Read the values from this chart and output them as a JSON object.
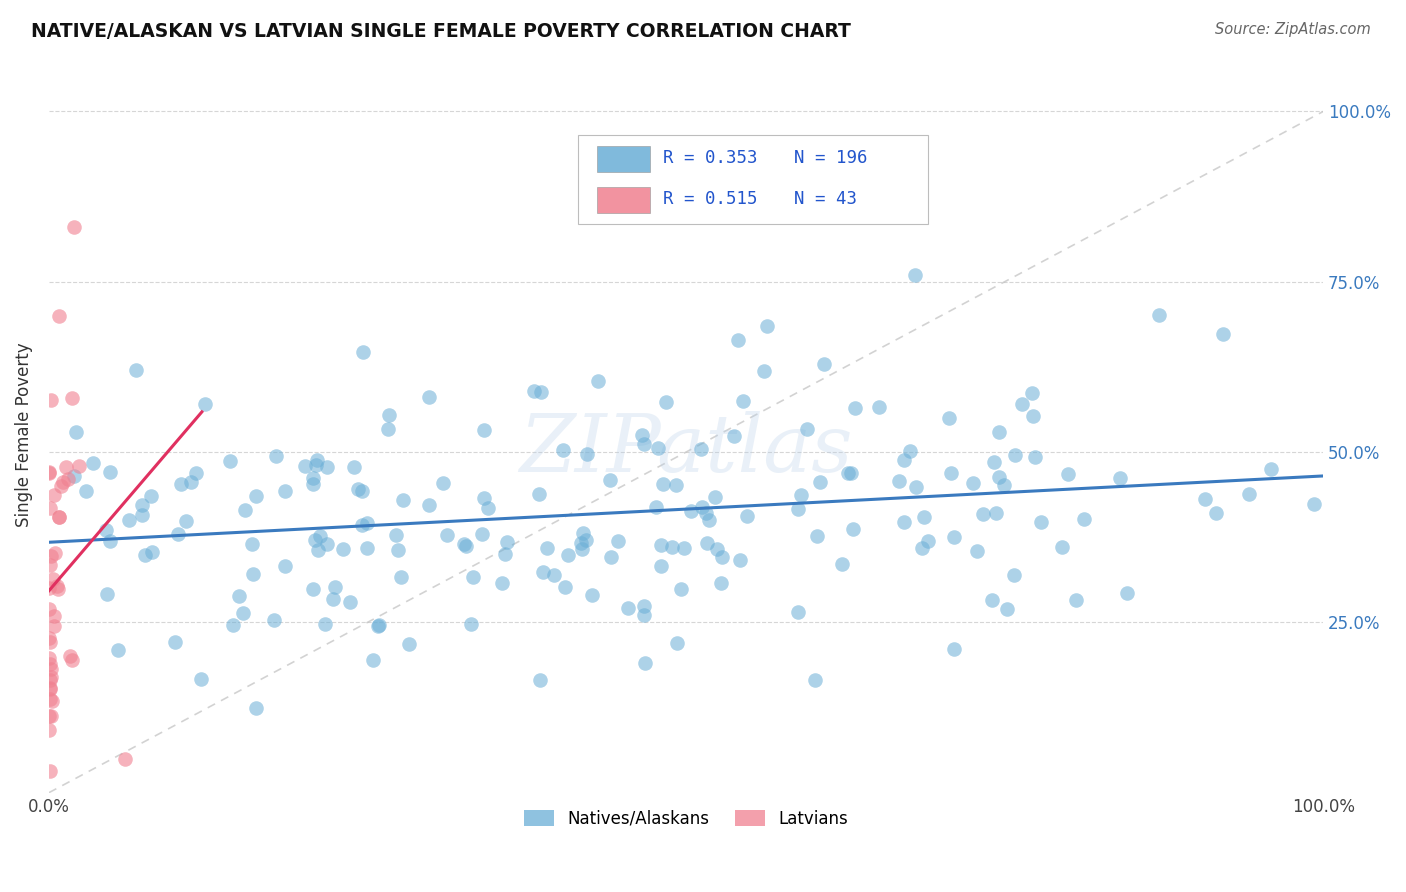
{
  "title": "NATIVE/ALASKAN VS LATVIAN SINGLE FEMALE POVERTY CORRELATION CHART",
  "source": "Source: ZipAtlas.com",
  "ylabel": "Single Female Poverty",
  "blue_color": "#6aaed6",
  "pink_color": "#f08090",
  "blue_line_color": "#3a7abf",
  "pink_line_color": "#e03060",
  "watermark_color": "#b8cfe8",
  "background_color": "#ffffff",
  "grid_color": "#cccccc",
  "R_blue": 0.353,
  "N_blue": 196,
  "R_pink": 0.515,
  "N_pink": 43,
  "seed_blue": 7,
  "seed_pink": 13,
  "legend_R_blue": "0.353",
  "legend_N_blue": "196",
  "legend_R_pink": "0.515",
  "legend_N_pink": "43"
}
